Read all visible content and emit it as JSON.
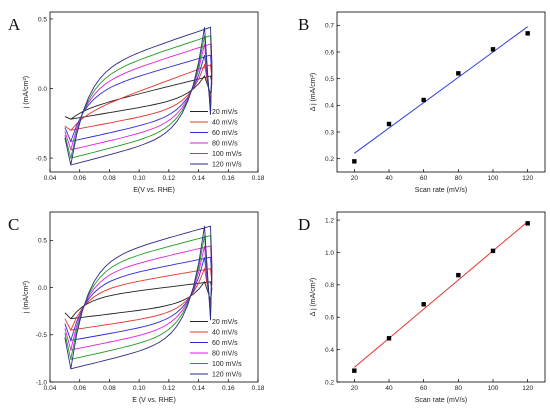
{
  "chart_data": [
    {
      "panel": "A",
      "type": "line",
      "xlabel": "E(V vs. RHE)",
      "ylabel": "j (mA/cm²)",
      "xlim": [
        0.04,
        0.18
      ],
      "ylim": [
        -0.6,
        0.55
      ],
      "xticks": [
        "0.04",
        "0.06",
        "0.08",
        "0.10",
        "0.12",
        "0.14",
        "0.16",
        "0.18"
      ],
      "yticks": [
        "-0.5",
        "0.0",
        "0.5"
      ],
      "legend_position": "bottom-right",
      "series": [
        {
          "name": "20 mV/s",
          "color": "#222222",
          "E": [
            0.05,
            0.148
          ],
          "j_upper": [
            -0.16,
            0.09
          ],
          "j_lower": [
            -0.22,
            -0.06
          ]
        },
        {
          "name": "40 mV/s",
          "color": "#e8332a",
          "E": [
            0.05,
            0.148
          ],
          "j_upper": [
            -0.2,
            0.17
          ],
          "j_lower": [
            -0.3,
            -0.12
          ]
        },
        {
          "name": "60 mV/s",
          "color": "#2c2cd8",
          "E": [
            0.05,
            0.148
          ],
          "j_upper": [
            -0.05,
            0.24
          ],
          "j_lower": [
            -0.38,
            -0.17
          ]
        },
        {
          "name": "80 mV/s",
          "color": "#e020e0",
          "E": [
            0.05,
            0.148
          ],
          "j_upper": [
            0.0,
            0.32
          ],
          "j_lower": [
            -0.44,
            -0.22
          ]
        },
        {
          "name": "100 mV/s",
          "color": "#1e9c1e",
          "E": [
            0.05,
            0.148
          ],
          "j_upper": [
            0.05,
            0.38
          ],
          "j_lower": [
            -0.5,
            -0.26
          ]
        },
        {
          "name": "120 mV/s",
          "color": "#2a2a8a",
          "E": [
            0.05,
            0.148
          ],
          "j_upper": [
            0.1,
            0.44
          ],
          "j_lower": [
            -0.55,
            -0.3
          ]
        }
      ]
    },
    {
      "panel": "B",
      "type": "scatter",
      "xlabel": "Scan rate (mV/s)",
      "ylabel": "Δ j (mA/cm²)",
      "xlim": [
        10,
        130
      ],
      "ylim": [
        0.15,
        0.75
      ],
      "xticks": [
        "20",
        "40",
        "60",
        "80",
        "100",
        "120"
      ],
      "yticks": [
        "0.2",
        "0.3",
        "0.4",
        "0.5",
        "0.6",
        "0.7"
      ],
      "point_color": "#000000",
      "x": [
        20,
        40,
        60,
        80,
        100,
        120
      ],
      "y": [
        0.19,
        0.33,
        0.42,
        0.52,
        0.61,
        0.67
      ],
      "fit": {
        "color": "#2c3cd8",
        "x": [
          20,
          120
        ],
        "y": [
          0.22,
          0.695
        ]
      }
    },
    {
      "panel": "C",
      "type": "line",
      "xlabel": "E (V vs. RHE)",
      "ylabel": "j (mA/cm²)",
      "xlim": [
        0.04,
        0.18
      ],
      "ylim": [
        -1.0,
        0.8
      ],
      "xticks": [
        "0.04",
        "0.06",
        "0.08",
        "0.10",
        "0.12",
        "0.14",
        "0.16",
        "0.18"
      ],
      "yticks": [
        "-1.0",
        "-0.5",
        "0.0",
        "0.5"
      ],
      "legend_position": "bottom-right",
      "series": [
        {
          "name": "20 mV/s",
          "color": "#222222",
          "E": [
            0.05,
            0.148
          ],
          "j_upper": [
            -0.12,
            0.06
          ],
          "j_lower": [
            -0.33,
            -0.16
          ]
        },
        {
          "name": "40 mV/s",
          "color": "#e8332a",
          "E": [
            0.05,
            0.148
          ],
          "j_upper": [
            -0.05,
            0.2
          ],
          "j_lower": [
            -0.45,
            -0.24
          ]
        },
        {
          "name": "60 mV/s",
          "color": "#2c2cd8",
          "E": [
            0.05,
            0.148
          ],
          "j_upper": [
            0.03,
            0.32
          ],
          "j_lower": [
            -0.56,
            -0.31
          ]
        },
        {
          "name": "80 mV/s",
          "color": "#e020e0",
          "E": [
            0.05,
            0.148
          ],
          "j_upper": [
            0.1,
            0.44
          ],
          "j_lower": [
            -0.66,
            -0.38
          ]
        },
        {
          "name": "100 mV/s",
          "color": "#1e9c1e",
          "E": [
            0.05,
            0.148
          ],
          "j_upper": [
            0.17,
            0.55
          ],
          "j_lower": [
            -0.76,
            -0.45
          ]
        },
        {
          "name": "120 mV/s",
          "color": "#2a2a8a",
          "E": [
            0.05,
            0.148
          ],
          "j_upper": [
            0.24,
            0.65
          ],
          "j_lower": [
            -0.86,
            -0.52
          ]
        }
      ]
    },
    {
      "panel": "D",
      "type": "scatter",
      "xlabel": "Scan rate (mV/s)",
      "ylabel": "Δ j (mA/cm²)",
      "xlim": [
        10,
        130
      ],
      "ylim": [
        0.2,
        1.25
      ],
      "xticks": [
        "20",
        "40",
        "60",
        "80",
        "100",
        "120"
      ],
      "yticks": [
        "0.2",
        "0.4",
        "0.6",
        "0.8",
        "1.0",
        "1.2"
      ],
      "point_color": "#000000",
      "x": [
        20,
        40,
        60,
        80,
        100,
        120
      ],
      "y": [
        0.27,
        0.47,
        0.68,
        0.86,
        1.01,
        1.18
      ],
      "fit": {
        "color": "#e8332a",
        "x": [
          20,
          120
        ],
        "y": [
          0.29,
          1.19
        ]
      }
    }
  ]
}
